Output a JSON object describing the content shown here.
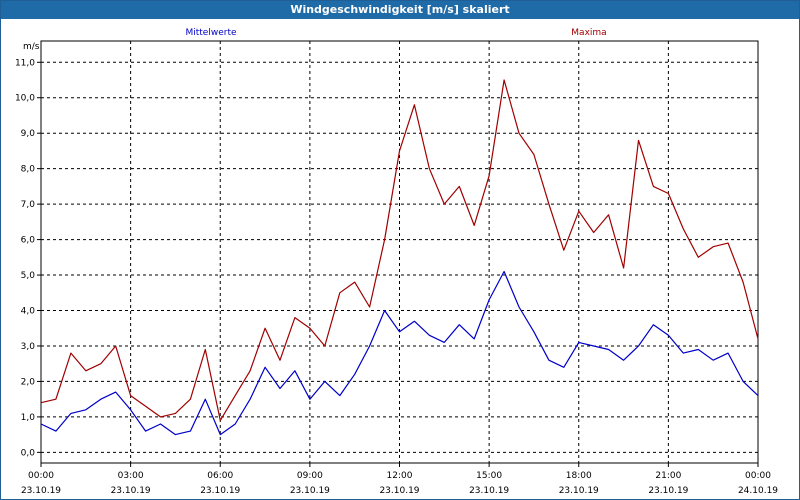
{
  "window": {
    "title": "Windgeschwindigkeit [m/s] skaliert"
  },
  "colors": {
    "title_bar": "#1f6ba8",
    "mean": "#0000c8",
    "max": "#a00000",
    "grid": "#000000"
  },
  "chart_data": {
    "type": "line",
    "ylabel": "m/s",
    "ylim": [
      -0.3,
      11.6
    ],
    "yticks": [
      "0,0",
      "1,0",
      "2,0",
      "3,0",
      "4,0",
      "5,0",
      "6,0",
      "7,0",
      "8,0",
      "9,0",
      "10,0",
      "11,0"
    ],
    "ytick_values": [
      0,
      1,
      2,
      3,
      4,
      5,
      6,
      7,
      8,
      9,
      10,
      11
    ],
    "xlim": [
      0,
      24
    ],
    "xtick_values": [
      0,
      3,
      6,
      9,
      12,
      15,
      18,
      21,
      24
    ],
    "xticks_time": [
      "00:00",
      "03:00",
      "06:00",
      "09:00",
      "12:00",
      "15:00",
      "18:00",
      "21:00",
      "00:00"
    ],
    "xticks_date": [
      "23.10.19",
      "23.10.19",
      "23.10.19",
      "23.10.19",
      "23.10.19",
      "23.10.19",
      "23.10.19",
      "23.10.19",
      "24.10.19"
    ],
    "grid": true,
    "series": [
      {
        "name": "Mittelwerte",
        "x": [
          0,
          0.5,
          1,
          1.5,
          2,
          2.5,
          3,
          3.5,
          4,
          4.5,
          5,
          5.5,
          6,
          6.5,
          7,
          7.5,
          8,
          8.5,
          9,
          9.5,
          10,
          10.5,
          11,
          11.5,
          12,
          12.5,
          13,
          13.5,
          14,
          14.5,
          15,
          15.5,
          16,
          16.5,
          17,
          17.5,
          18,
          18.5,
          19,
          19.5,
          20,
          20.5,
          21,
          21.5,
          22,
          22.5,
          23,
          23.5,
          24
        ],
        "values": [
          0.8,
          0.6,
          1.1,
          1.2,
          1.5,
          1.7,
          1.2,
          0.6,
          0.8,
          0.5,
          0.6,
          1.5,
          0.5,
          0.8,
          1.5,
          2.4,
          1.8,
          2.3,
          1.5,
          2.0,
          1.6,
          2.2,
          3.0,
          4.0,
          3.4,
          3.7,
          3.3,
          3.1,
          3.6,
          3.2,
          4.3,
          5.1,
          4.1,
          3.4,
          2.6,
          2.4,
          3.1,
          3.0,
          2.9,
          2.6,
          3.0,
          3.6,
          3.3,
          2.8,
          2.9,
          2.6,
          2.8,
          2.0,
          1.6
        ]
      },
      {
        "name": "Maxima",
        "x": [
          0,
          0.5,
          1,
          1.5,
          2,
          2.5,
          3,
          3.5,
          4,
          4.5,
          5,
          5.5,
          6,
          6.5,
          7,
          7.5,
          8,
          8.5,
          9,
          9.5,
          10,
          10.5,
          11,
          11.5,
          12,
          12.5,
          13,
          13.5,
          14,
          14.5,
          15,
          15.5,
          16,
          16.5,
          17,
          17.5,
          18,
          18.5,
          19,
          19.5,
          20,
          20.5,
          21,
          21.5,
          22,
          22.5,
          23,
          23.5,
          24
        ],
        "values": [
          1.4,
          1.5,
          2.8,
          2.3,
          2.5,
          3.0,
          1.6,
          1.3,
          1.0,
          1.1,
          1.5,
          2.9,
          0.9,
          1.6,
          2.3,
          3.5,
          2.6,
          3.8,
          3.5,
          3.0,
          4.5,
          4.8,
          4.1,
          6.0,
          8.5,
          9.8,
          8.0,
          7.0,
          7.5,
          6.4,
          7.8,
          10.5,
          9.0,
          8.4,
          7.0,
          5.7,
          6.8,
          6.2,
          6.7,
          5.2,
          8.8,
          7.5,
          7.3,
          6.3,
          5.5,
          5.8,
          5.9,
          4.8,
          3.2
        ]
      }
    ]
  }
}
